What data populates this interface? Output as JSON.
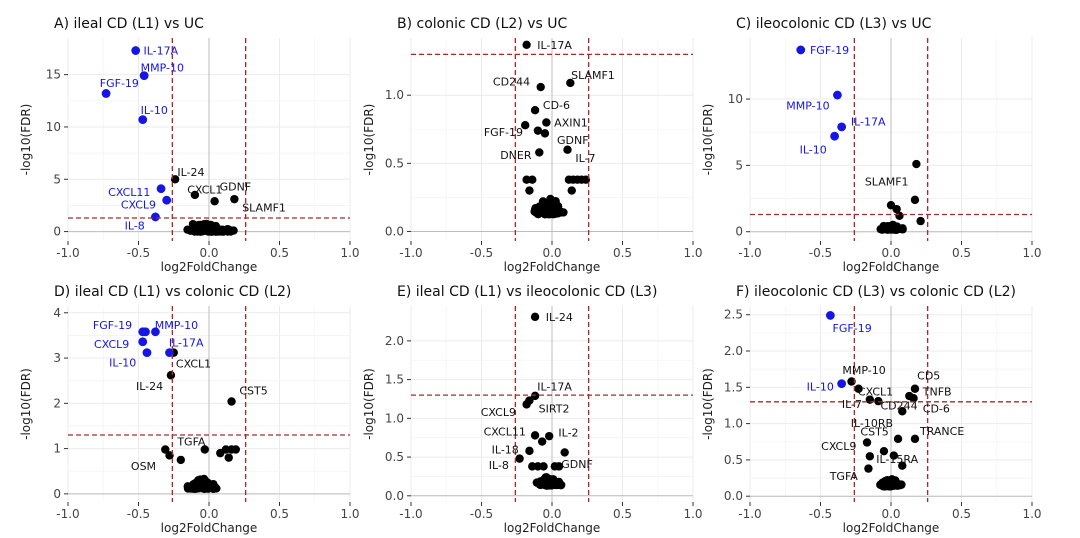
{
  "colors": {
    "black": "#000000",
    "blue": "#1515e6",
    "threshold": "#a52a2a",
    "grid": "#ebebeb",
    "zero": "#bdbdbd"
  },
  "chart_data": [
    {
      "type": "scatter",
      "title": "A) ileal CD (L1) vs UC",
      "xlabel": "log2FoldChange",
      "ylabel": "-log10(FDR)",
      "xlim": [
        -1.0,
        1.0
      ],
      "ylim": [
        -0.9,
        18.5
      ],
      "xticks": [
        "-1.0",
        "-0.5",
        "0.0",
        "0.5",
        "1.0"
      ],
      "yticks": [
        0,
        5,
        10,
        15
      ],
      "ytick_labels": [
        "0",
        "5",
        "10",
        "15"
      ],
      "threshold_x": [
        -0.26,
        0.26
      ],
      "threshold_y": 1.3,
      "grid": true,
      "legend": "none",
      "highlight": [
        {
          "x": -0.52,
          "y": 17.3,
          "label": "IL-17A",
          "dx": 0.02,
          "dy": 0.0,
          "anchor": "start"
        },
        {
          "x": -0.46,
          "y": 14.9,
          "label": "MMP-10",
          "dx": -0.06,
          "dy": 0.8,
          "anchor": "start"
        },
        {
          "x": -0.73,
          "y": 13.2,
          "label": "FGF-19",
          "dx": -0.08,
          "dy": 1.0,
          "anchor": "start"
        },
        {
          "x": -0.47,
          "y": 10.7,
          "label": "IL-10",
          "dx": -0.05,
          "dy": 0.9,
          "anchor": "start"
        },
        {
          "x": -0.34,
          "y": 4.1,
          "label": "CXCL11",
          "dx": -0.04,
          "dy": -0.3,
          "anchor": "end"
        },
        {
          "x": -0.3,
          "y": 3.0,
          "label": "CXCL9",
          "dx": -0.04,
          "dy": -0.4,
          "anchor": "end"
        },
        {
          "x": -0.38,
          "y": 1.4,
          "label": "IL-8",
          "dx": -0.04,
          "dy": -0.8,
          "anchor": "end"
        }
      ],
      "labeled": [
        {
          "x": -0.24,
          "y": 5.0,
          "label": "IL-24",
          "dx": -0.02,
          "dy": 0.7,
          "anchor": "start"
        },
        {
          "x": -0.1,
          "y": 3.5,
          "label": "CXCL1",
          "dx": -0.09,
          "dy": 0.5,
          "anchor": "start"
        },
        {
          "x": 0.04,
          "y": 2.9,
          "label": "GDNF",
          "dx": 0.0,
          "dy": 1.4,
          "anchor": "start"
        },
        {
          "x": 0.18,
          "y": 3.1,
          "label": "SLAMF1",
          "dx": 0.02,
          "dy": -0.8,
          "anchor": "start"
        }
      ],
      "cluster": {
        "center": [
          0.0,
          0.5
        ],
        "spread": [
          0.24,
          1.1
        ],
        "count": 90,
        "seed": 11
      }
    },
    {
      "type": "scatter",
      "title": "B) colonic CD (L2) vs UC",
      "xlabel": "log2FoldChange",
      "ylabel": "-log10(FDR)",
      "xlim": [
        -1.0,
        1.0
      ],
      "ylim": [
        -0.07,
        1.42
      ],
      "xticks": [
        "-1.0",
        "-0.5",
        "0.0",
        "0.5",
        "1.0"
      ],
      "yticks": [
        0,
        0.5,
        1.0
      ],
      "ytick_labels": [
        "0.0",
        "0.5",
        "1.0"
      ],
      "threshold_x": [
        -0.26,
        0.26
      ],
      "threshold_y": 1.3,
      "grid": true,
      "legend": "none",
      "highlight": [],
      "labeled": [
        {
          "x": -0.18,
          "y": 1.37,
          "label": "IL-17A",
          "dx": 0.04,
          "dy": 0.0,
          "anchor": "start"
        },
        {
          "x": -0.08,
          "y": 1.06,
          "label": "CD244",
          "dx": -0.04,
          "dy": 0.04,
          "anchor": "end"
        },
        {
          "x": 0.13,
          "y": 1.09,
          "label": "SLAMF1",
          "dx": -0.03,
          "dy": 0.06,
          "anchor": "start"
        },
        {
          "x": -0.12,
          "y": 0.89,
          "label": "CD-6",
          "dx": 0.02,
          "dy": 0.04,
          "anchor": "start"
        },
        {
          "x": -0.04,
          "y": 0.8,
          "label": "AXIN1",
          "dx": 0.02,
          "dy": 0.0,
          "anchor": "start"
        },
        {
          "x": -0.19,
          "y": 0.78,
          "label": "FGF-19",
          "dx": 0.02,
          "dy": -0.05,
          "anchor": "end"
        },
        {
          "x": -0.1,
          "y": 0.74,
          "label": "",
          "dx": 0,
          "dy": 0,
          "anchor": "start"
        },
        {
          "x": -0.05,
          "y": 0.72,
          "label": "GDNF",
          "dx": 0.05,
          "dy": -0.05,
          "anchor": "start"
        },
        {
          "x": -0.09,
          "y": 0.58,
          "label": "DNER",
          "dx": -0.02,
          "dy": -0.02,
          "anchor": "end"
        },
        {
          "x": 0.11,
          "y": 0.6,
          "label": "IL-7",
          "dx": 0.02,
          "dy": -0.06,
          "anchor": "start"
        }
      ],
      "cluster": {
        "center": [
          -0.02,
          0.2
        ],
        "spread": [
          0.14,
          0.15
        ],
        "count": 100,
        "seed": 23
      },
      "extra_points": [
        [
          0.12,
          0.38
        ],
        [
          0.15,
          0.38
        ],
        [
          0.18,
          0.38
        ],
        [
          0.21,
          0.38
        ],
        [
          0.24,
          0.38
        ],
        [
          -0.18,
          0.38
        ],
        [
          -0.14,
          0.38
        ],
        [
          -0.16,
          0.3
        ],
        [
          0.14,
          0.3
        ]
      ]
    },
    {
      "type": "scatter",
      "title": "C) ileocolonic CD (L3) vs UC",
      "xlabel": "log2FoldChange",
      "ylabel": "-log10(FDR)",
      "xlim": [
        -1.0,
        1.0
      ],
      "ylim": [
        -0.7,
        14.6
      ],
      "xticks": [
        "-1.0",
        "-0.5",
        "0.0",
        "0.5",
        "1.0"
      ],
      "yticks": [
        0,
        5,
        10
      ],
      "ytick_labels": [
        "0",
        "5",
        "10"
      ],
      "threshold_x": [
        -0.26,
        0.26
      ],
      "threshold_y": 1.3,
      "grid": true,
      "legend": "none",
      "highlight": [
        {
          "x": -0.64,
          "y": 13.7,
          "label": "FGF-19",
          "dx": 0.03,
          "dy": 0.0,
          "anchor": "start"
        },
        {
          "x": -0.38,
          "y": 10.3,
          "label": "MMP-10",
          "dx": -0.02,
          "dy": -0.8,
          "anchor": "end"
        },
        {
          "x": -0.35,
          "y": 7.9,
          "label": "IL-17A",
          "dx": 0.03,
          "dy": 0.4,
          "anchor": "start"
        },
        {
          "x": -0.4,
          "y": 7.2,
          "label": "IL-10",
          "dx": -0.02,
          "dy": -1.0,
          "anchor": "end"
        }
      ],
      "labeled": [
        {
          "x": 0.18,
          "y": 5.1,
          "label": "SLAMF1",
          "dx": -0.02,
          "dy": -1.3,
          "anchor": "end"
        }
      ],
      "cluster": {
        "center": [
          0.0,
          0.4
        ],
        "spread": [
          0.1,
          0.5
        ],
        "count": 75,
        "seed": 37
      },
      "extra_points": [
        [
          0.04,
          1.7
        ],
        [
          0.06,
          1.2
        ],
        [
          0.17,
          2.4
        ],
        [
          0.21,
          0.8
        ],
        [
          0.0,
          2.0
        ]
      ]
    },
    {
      "type": "scatter",
      "title": "D) ileal CD (L1) vs colonic CD (L2)",
      "xlabel": "log2FoldChange",
      "ylabel": "-log10(FDR)",
      "xlim": [
        -1.0,
        1.0
      ],
      "ylim": [
        -0.18,
        4.15
      ],
      "xticks": [
        "-1.0",
        "-0.5",
        "0.0",
        "0.5",
        "1.0"
      ],
      "yticks": [
        0,
        1,
        2,
        3,
        4
      ],
      "ytick_labels": [
        "0",
        "1",
        "2",
        "3",
        "4"
      ],
      "threshold_x": [
        -0.26,
        0.26
      ],
      "threshold_y": 1.3,
      "grid": true,
      "legend": "none",
      "highlight": [
        {
          "x": -0.47,
          "y": 3.58,
          "label": "FGF-19",
          "dx": -0.04,
          "dy": 0.15,
          "anchor": "end"
        },
        {
          "x": -0.45,
          "y": 3.58,
          "label": "",
          "dx": 0,
          "dy": 0,
          "anchor": "start"
        },
        {
          "x": -0.38,
          "y": 3.58,
          "label": "MMP-10",
          "dx": -0.04,
          "dy": 0.15,
          "anchor": "start"
        },
        {
          "x": -0.47,
          "y": 3.36,
          "label": "CXCL9",
          "dx": -0.06,
          "dy": -0.05,
          "anchor": "end"
        },
        {
          "x": -0.28,
          "y": 3.12,
          "label": "IL-17A",
          "dx": -0.04,
          "dy": 0.22,
          "anchor": "start"
        },
        {
          "x": -0.44,
          "y": 3.12,
          "label": "IL-10",
          "dx": -0.04,
          "dy": -0.22,
          "anchor": "end"
        }
      ],
      "labeled": [
        {
          "x": -0.25,
          "y": 3.12,
          "label": "CXCL1",
          "dx": -0.02,
          "dy": -0.24,
          "anchor": "start"
        },
        {
          "x": -0.27,
          "y": 2.62,
          "label": "IL-24",
          "dx": -0.02,
          "dy": -0.24,
          "anchor": "end"
        },
        {
          "x": 0.16,
          "y": 2.04,
          "label": "CST5",
          "dx": 0.02,
          "dy": 0.24,
          "anchor": "start"
        },
        {
          "x": -0.31,
          "y": 0.98,
          "label": "TGFA",
          "dx": 0.05,
          "dy": 0.18,
          "anchor": "start"
        },
        {
          "x": -0.28,
          "y": 0.85,
          "label": "OSM",
          "dx": -0.06,
          "dy": -0.24,
          "anchor": "end"
        }
      ],
      "cluster": {
        "center": [
          -0.05,
          0.25
        ],
        "spread": [
          0.13,
          0.28
        ],
        "count": 95,
        "seed": 51
      },
      "extra_points": [
        [
          0.12,
          0.98
        ],
        [
          0.16,
          0.98
        ],
        [
          0.19,
          0.98
        ],
        [
          0.08,
          0.9
        ],
        [
          -0.2,
          0.75
        ],
        [
          0.14,
          0.8
        ],
        [
          -0.03,
          0.98
        ]
      ]
    },
    {
      "type": "scatter",
      "title": "E) ileal CD (L1) vs ileocolonic CD (L3)",
      "xlabel": "log2FoldChange",
      "ylabel": "-log10(FDR)",
      "xlim": [
        -1.0,
        1.0
      ],
      "ylim": [
        -0.08,
        2.45
      ],
      "xticks": [
        "-1.0",
        "-0.5",
        "0.0",
        "0.5",
        "1.0"
      ],
      "yticks": [
        0,
        0.5,
        1.0,
        1.5,
        2.0
      ],
      "ytick_labels": [
        "0.0",
        "0.5",
        "1.0",
        "1.5",
        "2.0"
      ],
      "threshold_x": [
        -0.26,
        0.26
      ],
      "threshold_y": 1.3,
      "grid": true,
      "legend": "none",
      "highlight": [],
      "labeled": [
        {
          "x": -0.12,
          "y": 2.31,
          "label": "IL-24",
          "dx": 0.04,
          "dy": 0.0,
          "anchor": "start"
        },
        {
          "x": -0.12,
          "y": 1.29,
          "label": "IL-17A",
          "dx": -0.02,
          "dy": 0.12,
          "anchor": "start"
        },
        {
          "x": -0.18,
          "y": 1.18,
          "label": "CXCL9",
          "dx": -0.04,
          "dy": -0.1,
          "anchor": "end"
        },
        {
          "x": -0.16,
          "y": 1.23,
          "label": "SIRT2",
          "dx": 0.03,
          "dy": -0.1,
          "anchor": "start"
        },
        {
          "x": -0.12,
          "y": 0.78,
          "label": "CXCL11",
          "dx": -0.03,
          "dy": 0.05,
          "anchor": "end"
        },
        {
          "x": -0.02,
          "y": 0.77,
          "label": "IL-2",
          "dx": 0.03,
          "dy": 0.05,
          "anchor": "start"
        },
        {
          "x": -0.07,
          "y": 0.7,
          "label": "",
          "dx": 0,
          "dy": 0,
          "anchor": "start"
        },
        {
          "x": -0.16,
          "y": 0.58,
          "label": "IL-18",
          "dx": -0.04,
          "dy": 0.02,
          "anchor": "end"
        },
        {
          "x": -0.23,
          "y": 0.48,
          "label": "IL-8",
          "dx": -0.04,
          "dy": -0.08,
          "anchor": "end"
        },
        {
          "x": 0.09,
          "y": 0.56,
          "label": "GDNF",
          "dx": -0.06,
          "dy": -0.15,
          "anchor": "start"
        }
      ],
      "cluster": {
        "center": [
          -0.02,
          0.2
        ],
        "spread": [
          0.11,
          0.14
        ],
        "count": 80,
        "seed": 67
      },
      "extra_points": [
        [
          -0.14,
          0.38
        ],
        [
          -0.1,
          0.38
        ],
        [
          -0.06,
          0.38
        ],
        [
          0.02,
          0.38
        ],
        [
          0.05,
          0.38
        ]
      ]
    },
    {
      "type": "scatter",
      "title": "F) ileocolonic CD (L3) vs colonic CD (L2)",
      "xlabel": "log2FoldChange",
      "ylabel": "-log10(FDR)",
      "xlim": [
        -1.0,
        1.0
      ],
      "ylim": [
        -0.08,
        2.62
      ],
      "xticks": [
        "-1.0",
        "-0.5",
        "0.0",
        "0.5",
        "1.0"
      ],
      "yticks": [
        0,
        0.5,
        1.0,
        1.5,
        2.0,
        2.5
      ],
      "ytick_labels": [
        "0.0",
        "0.5",
        "1.0",
        "1.5",
        "2.0",
        "2.5"
      ],
      "threshold_x": [
        -0.26,
        0.26
      ],
      "threshold_y": 1.3,
      "grid": true,
      "legend": "none",
      "highlight": [
        {
          "x": -0.43,
          "y": 2.49,
          "label": "FGF-19",
          "dx": -0.02,
          "dy": -0.17,
          "anchor": "start"
        },
        {
          "x": -0.35,
          "y": 1.55,
          "label": "IL-10",
          "dx": -0.02,
          "dy": -0.04,
          "anchor": "end"
        }
      ],
      "labeled": [
        {
          "x": -0.28,
          "y": 1.58,
          "label": "MMP-10",
          "dx": -0.1,
          "dy": 0.16,
          "anchor": "start"
        },
        {
          "x": -0.23,
          "y": 1.48,
          "label": "CXCL1",
          "dx": -0.04,
          "dy": -0.04,
          "anchor": "start"
        },
        {
          "x": 0.13,
          "y": 1.38,
          "label": "CD5",
          "dx": 0.02,
          "dy": 0.28,
          "anchor": "start"
        },
        {
          "x": 0.17,
          "y": 1.48,
          "label": "TNFB",
          "dx": 0.02,
          "dy": -0.04,
          "anchor": "start"
        },
        {
          "x": -0.15,
          "y": 1.33,
          "label": "IL-7",
          "dx": -0.02,
          "dy": -0.06,
          "anchor": "end"
        },
        {
          "x": -0.09,
          "y": 1.31,
          "label": "CD244",
          "dx": -0.02,
          "dy": -0.06,
          "anchor": "start"
        },
        {
          "x": 0.16,
          "y": 1.35,
          "label": "CD-6",
          "dx": 0.03,
          "dy": -0.14,
          "anchor": "start"
        },
        {
          "x": 0.08,
          "y": 1.17,
          "label": "IL-10RB",
          "dx": -0.03,
          "dy": -0.16,
          "anchor": "end"
        },
        {
          "x": 0.05,
          "y": 0.79,
          "label": "CST5",
          "dx": -0.03,
          "dy": 0.1,
          "anchor": "end"
        },
        {
          "x": 0.17,
          "y": 0.79,
          "label": "TRANCE",
          "dx": 0.0,
          "dy": 0.11,
          "anchor": "start"
        },
        {
          "x": -0.17,
          "y": 0.74,
          "label": "CXCL9",
          "dx": -0.04,
          "dy": -0.05,
          "anchor": "end"
        },
        {
          "x": -0.15,
          "y": 0.55,
          "label": "IL-15RA",
          "dx": 0.01,
          "dy": -0.04,
          "anchor": "start"
        },
        {
          "x": -0.16,
          "y": 0.38,
          "label": "TGFA",
          "dx": -0.04,
          "dy": -0.1,
          "anchor": "end"
        }
      ],
      "cluster": {
        "center": [
          0.0,
          0.2
        ],
        "spread": [
          0.1,
          0.13
        ],
        "count": 70,
        "seed": 83
      },
      "extra_points": [
        [
          -0.05,
          0.62
        ],
        [
          0.02,
          0.56
        ],
        [
          0.08,
          0.42
        ]
      ]
    }
  ]
}
